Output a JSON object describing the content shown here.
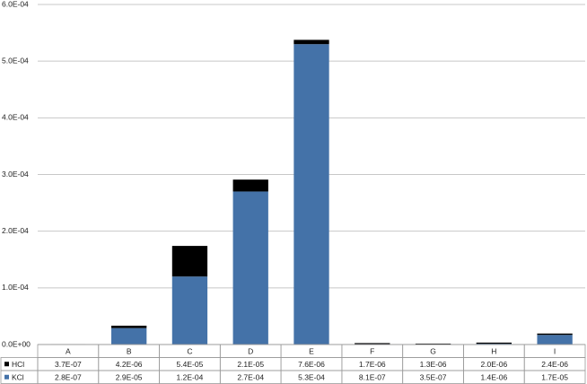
{
  "chart_data": {
    "type": "bar",
    "stacked": true,
    "categories": [
      "A",
      "B",
      "C",
      "D",
      "E",
      "F",
      "G",
      "H",
      "I"
    ],
    "series": [
      {
        "name": "HCl",
        "color": "#000000",
        "values": [
          3.7e-07,
          4.2e-06,
          5.4e-05,
          2.1e-05,
          7.6e-06,
          1.7e-06,
          1.3e-06,
          2e-06,
          2.4e-06
        ],
        "value_labels": [
          "3.7E-07",
          "4.2E-06",
          "5.4E-05",
          "2.1E-05",
          "7.6E-06",
          "1.7E-06",
          "1.3E-06",
          "2.0E-06",
          "2.4E-06"
        ]
      },
      {
        "name": "KCl",
        "color": "#4472a8",
        "values": [
          2.8e-07,
          2.9e-05,
          0.00012,
          0.00027,
          0.00053,
          8.1e-07,
          3.5e-07,
          1.4e-06,
          1.7e-05
        ],
        "value_labels": [
          "2.8E-07",
          "2.9E-05",
          "1.2E-04",
          "2.7E-04",
          "5.3E-04",
          "8.1E-07",
          "3.5E-07",
          "1.4E-06",
          "1.7E-05"
        ]
      }
    ],
    "ylim": [
      0,
      0.0006
    ],
    "yticks": [
      {
        "value": 0,
        "label": "0.0E+00"
      },
      {
        "value": 0.0001,
        "label": "1.0E-04"
      },
      {
        "value": 0.0002,
        "label": "2.0E-04"
      },
      {
        "value": 0.0003,
        "label": "3.0E-04"
      },
      {
        "value": 0.0004,
        "label": "4.0E-04"
      },
      {
        "value": 0.0005,
        "label": "5.0E-04"
      },
      {
        "value": 0.0006,
        "label": "6.0E-04"
      }
    ],
    "grid": true,
    "data_table": true
  }
}
